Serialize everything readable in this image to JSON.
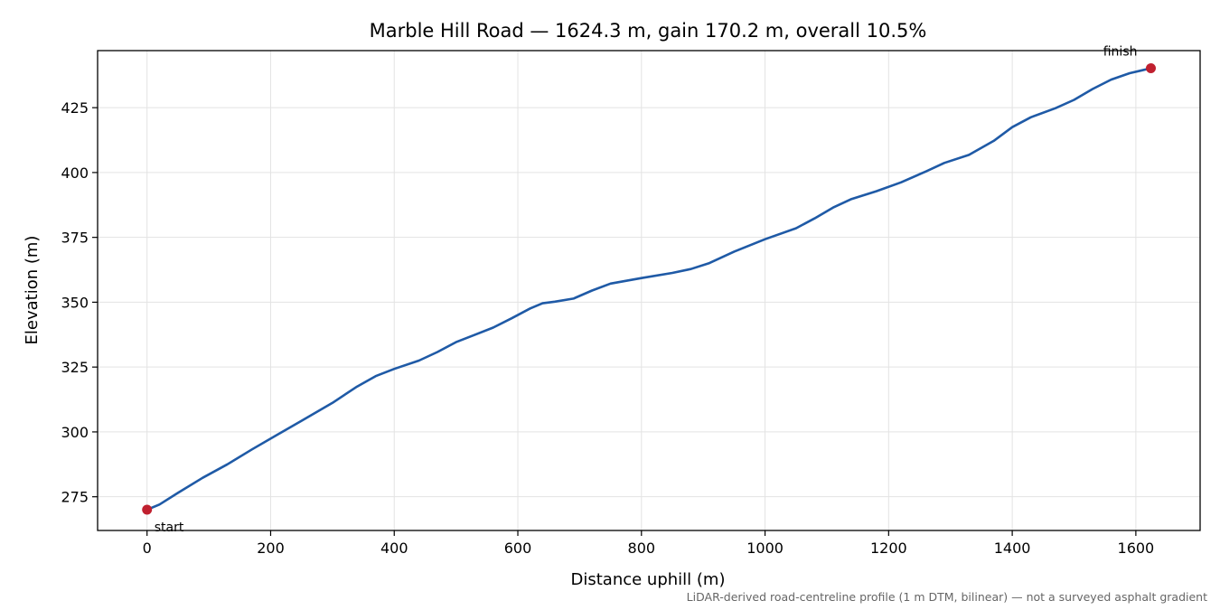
{
  "chart_data": {
    "type": "line",
    "title": "Marble Hill Road — 1624.3 m, gain 170.2 m, overall 10.5%",
    "xlabel": "Distance uphill (m)",
    "ylabel": "Elevation (m)",
    "xlim": [
      -80,
      1704
    ],
    "ylim": [
      262,
      447
    ],
    "xticks": [
      0,
      200,
      400,
      600,
      800,
      1000,
      1200,
      1400,
      1600
    ],
    "yticks": [
      275,
      300,
      325,
      350,
      375,
      400,
      425
    ],
    "grid": true,
    "legend": "none",
    "series": [
      {
        "color": "#1f5aa6",
        "x": [
          0,
          20,
          50,
          90,
          130,
          170,
          210,
          250,
          300,
          340,
          370,
          400,
          440,
          470,
          500,
          530,
          560,
          590,
          620,
          640,
          660,
          690,
          720,
          750,
          800,
          850,
          880,
          910,
          950,
          1000,
          1050,
          1080,
          1110,
          1140,
          1180,
          1220,
          1260,
          1290,
          1330,
          1370,
          1400,
          1430,
          1470,
          1500,
          1530,
          1560,
          1590,
          1610,
          1624.3
        ],
        "y": [
          270,
          272,
          276.5,
          282.3,
          287.5,
          293.3,
          298.8,
          304.3,
          311.2,
          317.5,
          321.5,
          324.3,
          327.5,
          330.8,
          334.6,
          337.4,
          340.2,
          343.8,
          347.6,
          349.6,
          350.2,
          351.4,
          354.5,
          357.2,
          359.3,
          361.3,
          362.8,
          365.1,
          369.5,
          374.3,
          378.5,
          382.3,
          386.5,
          389.8,
          392.8,
          396.2,
          400.4,
          403.7,
          406.8,
          412.2,
          417.5,
          421.3,
          424.8,
          428.0,
          432.2,
          435.8,
          438.3,
          439.4,
          440.2
        ]
      }
    ],
    "markers": [
      {
        "x": 0,
        "y": 270,
        "label": "start",
        "color": "#c0202f"
      },
      {
        "x": 1624.3,
        "y": 440.2,
        "label": "finish",
        "color": "#c0202f"
      }
    ],
    "footnote": "LiDAR-derived road-centreline profile (1 m DTM, bilinear) — not a surveyed asphalt gradient"
  }
}
